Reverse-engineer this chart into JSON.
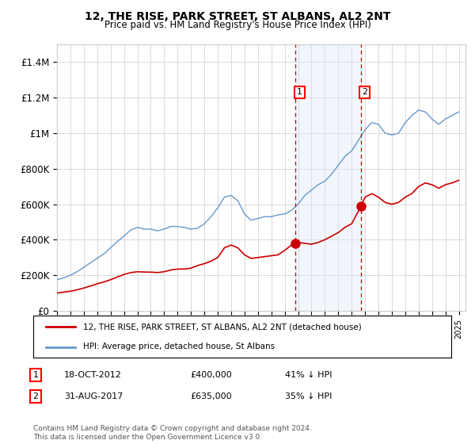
{
  "title": "12, THE RISE, PARK STREET, ST ALBANS, AL2 2NT",
  "subtitle": "Price paid vs. HM Land Registry's House Price Index (HPI)",
  "ylabel_ticks": [
    "£0",
    "£200K",
    "£400K",
    "£600K",
    "£800K",
    "£1M",
    "£1.2M",
    "£1.4M"
  ],
  "ylim": [
    0,
    1500000
  ],
  "xlim_start": 1995.0,
  "xlim_end": 2025.5,
  "transaction1": {
    "date_x": 2012.8,
    "price": 400000,
    "label": "1",
    "date_str": "18-OCT-2012",
    "below_hpi": "41% ↓ HPI"
  },
  "transaction2": {
    "date_x": 2017.67,
    "price": 635000,
    "label": "2",
    "date_str": "31-AUG-2017",
    "below_hpi": "35% ↓ HPI"
  },
  "shade_color": "#d6e8f7",
  "line_color_red": "#cc0000",
  "line_color_blue": "#6699cc",
  "vline_color": "#cc0000",
  "legend_label_red": "12, THE RISE, PARK STREET, ST ALBANS, AL2 2NT (detached house)",
  "legend_label_blue": "HPI: Average price, detached house, St Albans",
  "footnote": "Contains HM Land Registry data © Crown copyright and database right 2024.\nThis data is licensed under the Open Government Licence v3.0.",
  "background_color": "#ffffff",
  "grid_color": "#cccccc",
  "hpi_years": [
    1995,
    1995.5,
    1996,
    1996.5,
    1997,
    1997.5,
    1998,
    1998.5,
    1999,
    1999.5,
    2000,
    2000.5,
    2001,
    2001.5,
    2002,
    2002.5,
    2003,
    2003.5,
    2004,
    2004.5,
    2005,
    2005.5,
    2006,
    2006.5,
    2007,
    2007.5,
    2008,
    2008.5,
    2009,
    2009.5,
    2010,
    2010.5,
    2011,
    2011.5,
    2012,
    2012.5,
    2013,
    2013.5,
    2014,
    2014.5,
    2015,
    2015.5,
    2016,
    2016.5,
    2017,
    2017.5,
    2018,
    2018.5,
    2019,
    2019.5,
    2020,
    2020.5,
    2021,
    2021.5,
    2022,
    2022.5,
    2023,
    2023.5,
    2024,
    2024.5,
    2025
  ],
  "hpi_values": [
    175000,
    185000,
    200000,
    220000,
    245000,
    270000,
    295000,
    320000,
    355000,
    390000,
    420000,
    455000,
    470000,
    460000,
    460000,
    450000,
    460000,
    475000,
    475000,
    470000,
    460000,
    465000,
    490000,
    530000,
    580000,
    640000,
    650000,
    620000,
    545000,
    510000,
    520000,
    530000,
    530000,
    540000,
    545000,
    565000,
    600000,
    650000,
    680000,
    710000,
    730000,
    770000,
    820000,
    870000,
    900000,
    960000,
    1020000,
    1060000,
    1050000,
    1000000,
    990000,
    1000000,
    1060000,
    1100000,
    1130000,
    1120000,
    1080000,
    1050000,
    1080000,
    1100000,
    1120000
  ],
  "red_years": [
    1995,
    1995.5,
    1996,
    1996.5,
    1997,
    1997.5,
    1998,
    1998.5,
    1999,
    1999.5,
    2000,
    2000.5,
    2001,
    2001.5,
    2002,
    2002.5,
    2003,
    2003.5,
    2004,
    2004.5,
    2005,
    2005.5,
    2006,
    2006.5,
    2007,
    2007.5,
    2008,
    2008.5,
    2009,
    2009.5,
    2010,
    2010.5,
    2011,
    2011.5,
    2012,
    2012.5,
    2013,
    2013.5,
    2014,
    2014.5,
    2015,
    2015.5,
    2016,
    2016.5,
    2017,
    2017.5,
    2018,
    2018.5,
    2019,
    2019.5,
    2020,
    2020.5,
    2021,
    2021.5,
    2022,
    2022.5,
    2023,
    2023.5,
    2024,
    2024.5,
    2025
  ],
  "red_values": [
    100000,
    105000,
    110000,
    118000,
    128000,
    140000,
    152000,
    162000,
    175000,
    190000,
    205000,
    215000,
    220000,
    218000,
    218000,
    215000,
    220000,
    230000,
    235000,
    235000,
    240000,
    255000,
    265000,
    280000,
    300000,
    355000,
    370000,
    355000,
    315000,
    295000,
    300000,
    305000,
    310000,
    315000,
    340000,
    370000,
    385000,
    380000,
    375000,
    385000,
    400000,
    420000,
    440000,
    470000,
    490000,
    560000,
    640000,
    660000,
    640000,
    610000,
    600000,
    610000,
    640000,
    660000,
    700000,
    720000,
    710000,
    690000,
    710000,
    720000,
    735000
  ]
}
